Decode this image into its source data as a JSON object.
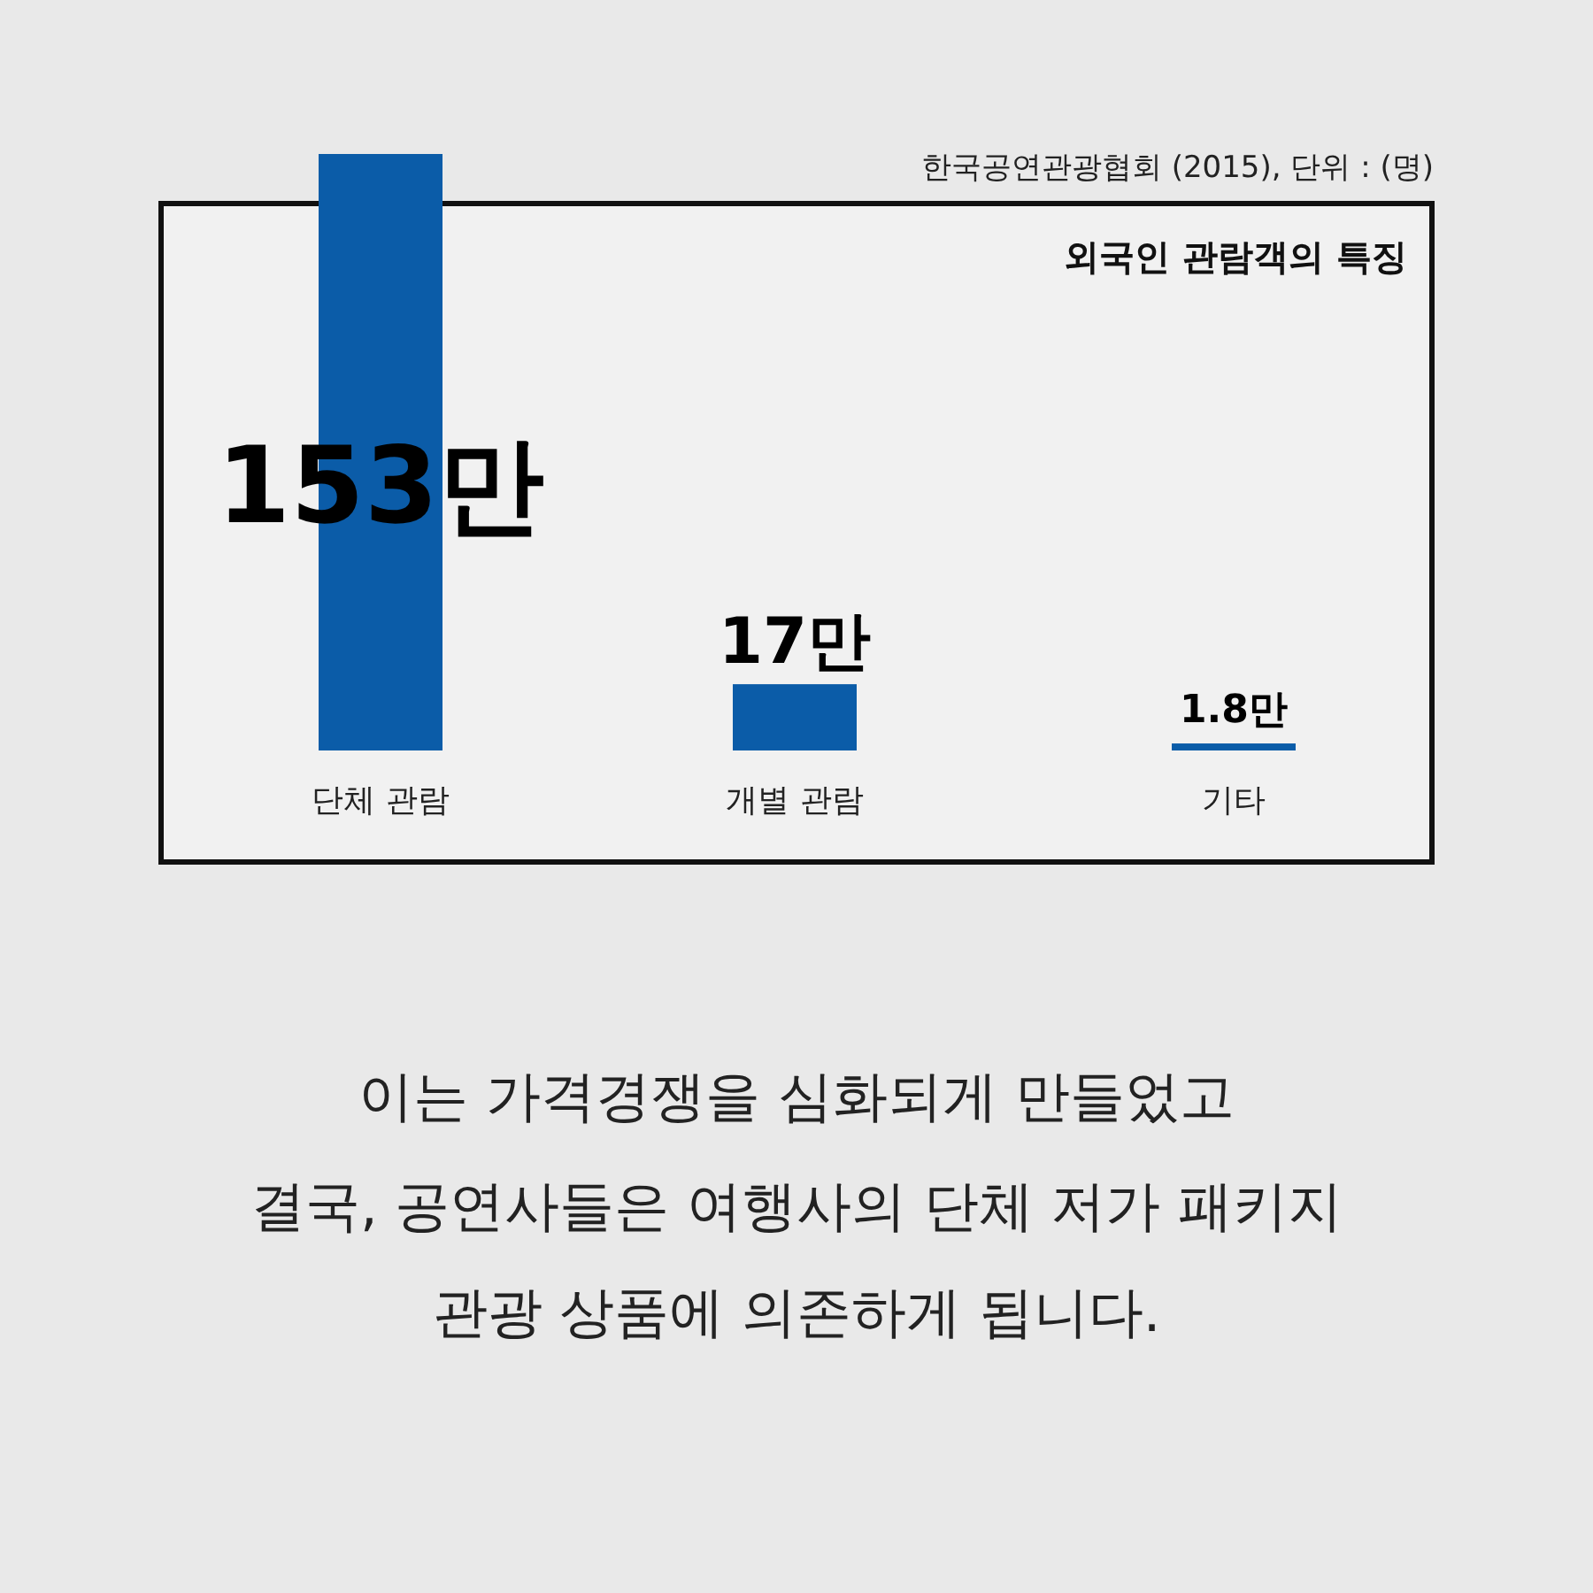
{
  "chart_data": {
    "type": "bar",
    "title": "외국인 관람객의 특징",
    "categories": [
      "단체 관람",
      "개별 관람",
      "기타"
    ],
    "values": [
      153,
      17,
      1.8
    ],
    "value_labels": [
      "153만",
      "17만",
      "1.8만"
    ],
    "color": "#0b5ca8",
    "annotations": [
      "한국공연관광협회 (2015),  단위 : (명)",
      "이는 가격경쟁을 심화되게 만들었고",
      "결국, 공연사들은 여행사의 단체 저가 패키지",
      "관광 상품에 의존하게 됩니다."
    ]
  }
}
